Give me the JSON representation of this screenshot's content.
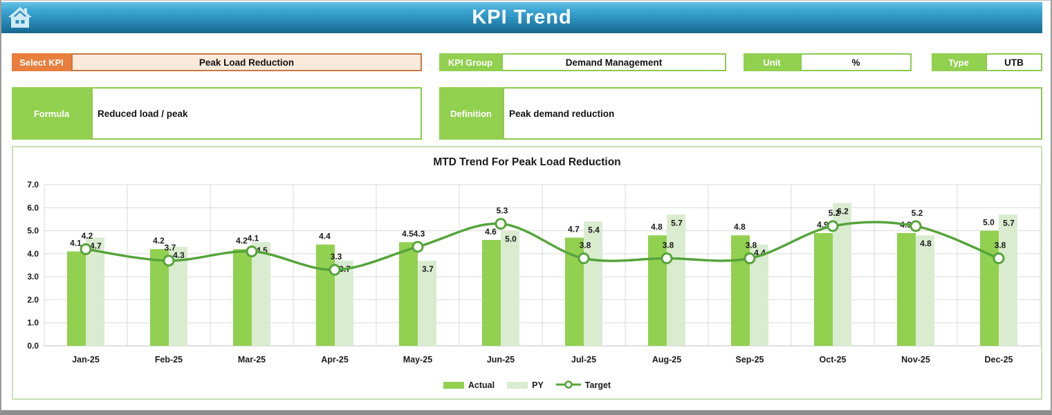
{
  "header": {
    "title": "KPI Trend",
    "home_icon": "house"
  },
  "kpi_panel": {
    "select_kpi": {
      "label": "Select KPI",
      "value": "Peak Load Reduction"
    },
    "kpi_group": {
      "label": "KPI Group",
      "value": "Demand Management"
    },
    "unit": {
      "label": "Unit",
      "value": "%"
    },
    "type": {
      "label": "Type",
      "value": "UTB"
    },
    "formula": {
      "label": "Formula",
      "value": "Reduced load / peak"
    },
    "definition": {
      "label": "Definition",
      "value": "Peak demand reduction"
    }
  },
  "colors": {
    "accent_orange": "#E87F3E",
    "field_peach": "#FBE9DC",
    "accent_green": "#92D050",
    "py_green": "#DAECD0",
    "target_line_green": "#55A43B",
    "header_blue_top": "#66C2E6",
    "header_blue_bottom": "#17678F",
    "gridline_gray": "#D9D9D9",
    "chart_border_green": "#C8DFB2"
  },
  "chart_data": {
    "type": "bar",
    "subtype": "combo-bar-line",
    "title": "MTD Trend For Peak Load Reduction",
    "categories": [
      "Jan-25",
      "Feb-25",
      "Mar-25",
      "Apr-25",
      "May-25",
      "Jun-25",
      "Jul-25",
      "Aug-25",
      "Sep-25",
      "Oct-25",
      "Nov-25",
      "Dec-25"
    ],
    "series": [
      {
        "name": "Actual",
        "kind": "bar",
        "color": "#92D050",
        "values": [
          4.1,
          4.2,
          4.2,
          4.4,
          4.5,
          4.6,
          4.7,
          4.8,
          4.8,
          4.9,
          4.9,
          5.0
        ]
      },
      {
        "name": "PY",
        "kind": "bar",
        "color": "#DAECD0",
        "values": [
          4.7,
          4.3,
          4.5,
          3.7,
          3.7,
          5.0,
          5.4,
          5.7,
          4.4,
          6.2,
          4.8,
          5.7
        ]
      },
      {
        "name": "Target",
        "kind": "line",
        "color": "#55A43B",
        "marker": "circle",
        "values": [
          4.2,
          3.7,
          4.1,
          3.3,
          4.3,
          5.3,
          3.8,
          3.8,
          3.8,
          5.2,
          5.2,
          3.8
        ]
      }
    ],
    "xlabel": "",
    "ylabel": "",
    "ylim": [
      0,
      7
    ],
    "ytick_step": 1,
    "ytick_decimals": 1,
    "grid": true,
    "data_labels": true,
    "label_decimals": 1,
    "legend_position": "bottom"
  }
}
